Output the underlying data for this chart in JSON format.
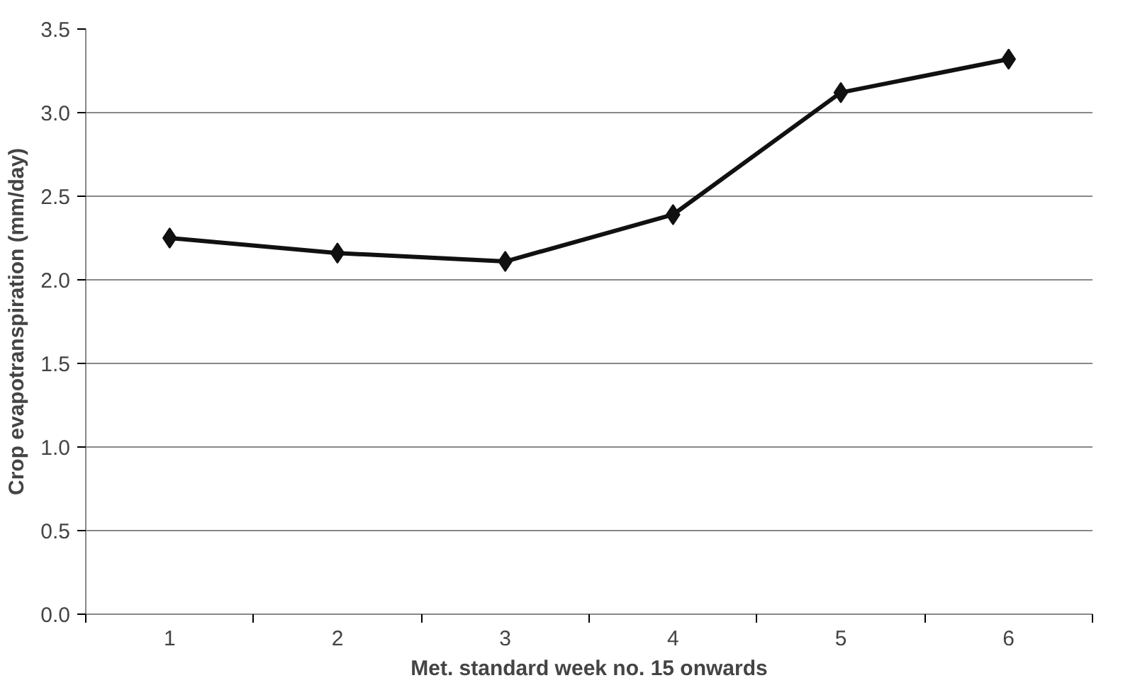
{
  "chart_data": {
    "type": "line",
    "xlabel": "Met. standard week no. 15 onwards",
    "ylabel": "Crop evapotranspiration (mm/day)",
    "categories": [
      "1",
      "2",
      "3",
      "4",
      "5",
      "6"
    ],
    "series": [
      {
        "color": "#111111",
        "values": [
          2.25,
          2.16,
          2.11,
          2.39,
          3.12,
          3.32
        ]
      }
    ],
    "ylim": [
      0,
      3.5
    ],
    "yticks": [
      {
        "value": 0,
        "label": "0.0"
      },
      {
        "value": 0.5,
        "label": "0.5"
      },
      {
        "value": 1,
        "label": "1.0"
      },
      {
        "value": 1.5,
        "label": "1.5"
      },
      {
        "value": 2,
        "label": "2.0"
      },
      {
        "value": 2.5,
        "label": "2.5"
      },
      {
        "value": 3,
        "label": "3.0"
      },
      {
        "value": 3.5,
        "label": "3.5"
      }
    ],
    "grid": "y",
    "marker": "diamond",
    "line_style": "solid"
  }
}
